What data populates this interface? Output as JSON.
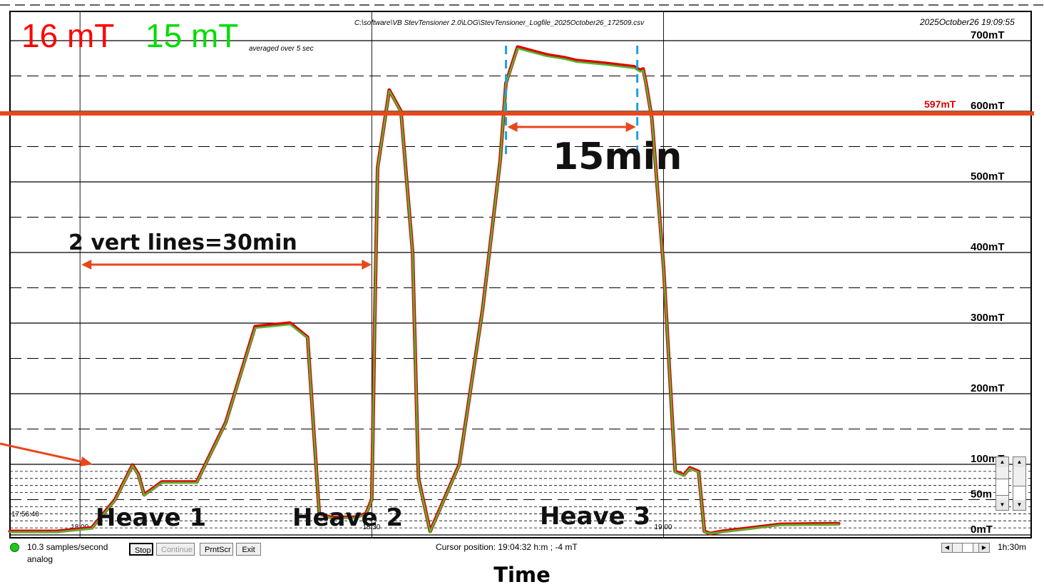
{
  "chart_data": {
    "type": "line",
    "file_path": "C:\\software\\VB StevTensioner 2.0\\LOG\\StevTensioner_Logfile_2025October26_172509.csv",
    "timestamp": "2025October26 19:09:55",
    "readings": {
      "red": {
        "value": "16 mT",
        "color": "#ff0000"
      },
      "green": {
        "value": "15 mT",
        "color": "#00dd00"
      },
      "note": "averaged over 5 sec"
    },
    "xlabel": "Time",
    "xlim": [
      17.88,
      19.63
    ],
    "ylim": [
      -5,
      720
    ],
    "y_unit": "mT",
    "grid": true,
    "y_ticks": [
      {
        "value": 700,
        "label": "700mT"
      },
      {
        "value": 600,
        "label": "600mT"
      },
      {
        "value": 500,
        "label": "500mT"
      },
      {
        "value": 400,
        "label": "400mT"
      },
      {
        "value": 300,
        "label": "300mT"
      },
      {
        "value": 200,
        "label": "200mT"
      },
      {
        "value": 100,
        "label": "100mT"
      },
      {
        "value": 50,
        "label": "50m"
      },
      {
        "value": 0,
        "label": "0mT"
      }
    ],
    "x_ticks": [
      {
        "value": 17.944,
        "label": "17:56:40",
        "row": "upper"
      },
      {
        "value": 18.0,
        "label": "18:00",
        "row": "lower"
      },
      {
        "value": 18.5,
        "label": "18:30",
        "row": "lower"
      },
      {
        "value": 19.0,
        "label": "19:00",
        "row": "lower"
      }
    ],
    "threshold": {
      "value": 597,
      "label": "597mT",
      "color": "#e8471c"
    },
    "series": [
      {
        "color": "#e00000",
        "x": [
          17.88,
          17.96,
          18.02,
          18.06,
          18.09,
          18.1,
          18.11,
          18.14,
          18.2,
          18.25,
          18.3,
          18.36,
          18.39,
          18.41,
          18.43,
          18.47,
          18.49,
          18.5,
          18.502,
          18.505,
          18.51,
          18.53,
          18.55,
          18.57,
          18.58,
          18.6,
          18.65,
          18.69,
          18.72,
          18.73,
          18.75,
          18.8,
          18.83,
          18.85,
          18.9,
          18.95,
          18.96,
          18.965,
          18.97,
          18.98,
          19.0,
          19.02,
          19.035,
          19.045,
          19.06,
          19.07,
          19.08,
          19.1,
          19.15,
          19.2,
          19.3
        ],
        "values": [
          5,
          5,
          10,
          50,
          99,
          86,
          57,
          75,
          75,
          160,
          295,
          300,
          280,
          30,
          25,
          25,
          30,
          50,
          150,
          300,
          520,
          630,
          600,
          400,
          80,
          5,
          100,
          320,
          530,
          640,
          691,
          680,
          676,
          672,
          668,
          663,
          658,
          660,
          640,
          590,
          380,
          90,
          85,
          95,
          90,
          5,
          2,
          5,
          10,
          15,
          16
        ]
      },
      {
        "color": "#50b832",
        "x": [
          17.88,
          17.96,
          18.02,
          18.06,
          18.09,
          18.1,
          18.11,
          18.14,
          18.2,
          18.25,
          18.3,
          18.36,
          18.39,
          18.41,
          18.43,
          18.47,
          18.49,
          18.5,
          18.502,
          18.505,
          18.51,
          18.53,
          18.55,
          18.57,
          18.58,
          18.6,
          18.65,
          18.69,
          18.72,
          18.73,
          18.75,
          18.8,
          18.83,
          18.85,
          18.9,
          18.95,
          18.96,
          18.965,
          18.97,
          18.98,
          19.0,
          19.02,
          19.035,
          19.045,
          19.06,
          19.07,
          19.08,
          19.1,
          19.15,
          19.2,
          19.3
        ],
        "values": [
          4,
          4,
          9,
          49,
          98,
          85,
          56,
          74,
          74,
          159,
          293,
          298,
          279,
          30,
          24,
          24,
          29,
          49,
          149,
          299,
          519,
          629,
          599,
          399,
          79,
          4,
          99,
          319,
          529,
          639,
          689,
          678,
          674,
          670,
          666,
          661,
          656,
          658,
          639,
          589,
          379,
          89,
          84,
          94,
          89,
          4,
          2,
          4,
          9,
          14,
          15
        ]
      }
    ],
    "annotations": [
      {
        "type": "text",
        "text": "2 vert lines=30min"
      },
      {
        "type": "text",
        "text": "15min"
      },
      {
        "type": "text",
        "text": "Heave 1"
      },
      {
        "type": "text",
        "text": "Heave 2"
      },
      {
        "type": "text",
        "text": "Heave 3"
      },
      {
        "type": "span-arrow",
        "x_start": 18.0,
        "x_end": 18.5,
        "color": "#e8471c"
      },
      {
        "type": "span-arrow",
        "x_start": 18.73,
        "x_end": 18.955,
        "color": "#e8471c"
      },
      {
        "type": "dashed-marker",
        "x": 18.73,
        "color": "#1ea0e6"
      },
      {
        "type": "dashed-marker",
        "x": 18.955,
        "color": "#1ea0e6"
      }
    ]
  },
  "status": {
    "rate": "10.3 samples/second",
    "mode": "analog",
    "cursor": "Cursor position: 19:04:32 h:m ; -4 mT",
    "span": "1h:30m",
    "led_color": "#1ec81e"
  },
  "buttons": {
    "stop": "Stop",
    "continue": "Continue",
    "print": "PrntScr",
    "exit": "Exit"
  }
}
